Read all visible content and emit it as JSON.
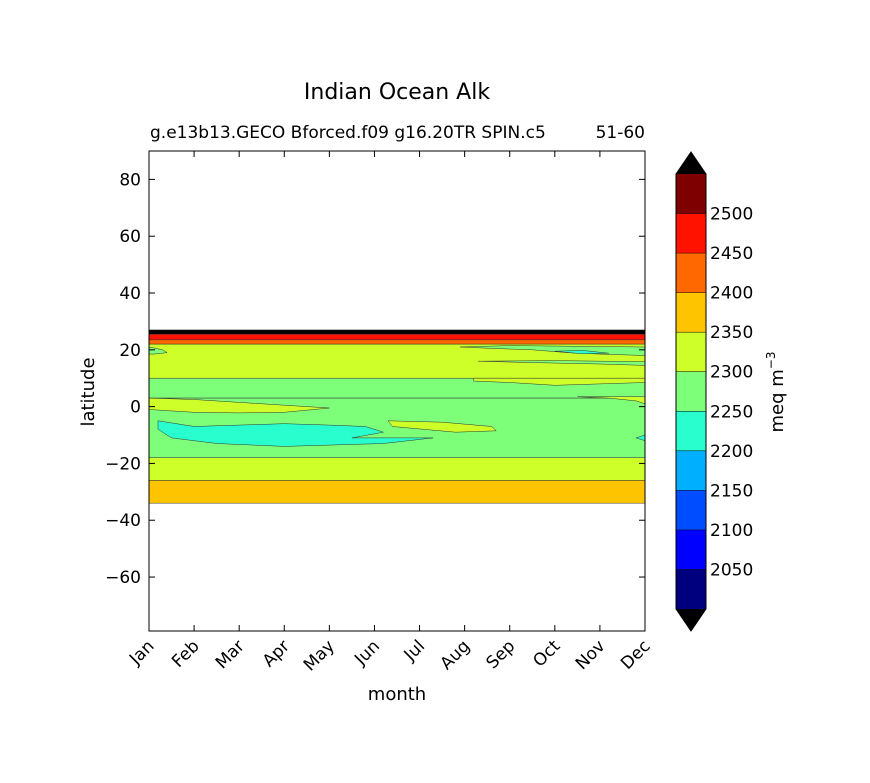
{
  "chart_data": {
    "type": "contour",
    "title": "Indian Ocean Alk",
    "subtitle_left": "g.e13b13.GECO Bforced.f09 g16.20TR SPIN.c5",
    "subtitle_right": "51-60",
    "xlabel": "month",
    "ylabel": "latitude",
    "x_ticks": [
      "Jan",
      "Feb",
      "Mar",
      "Apr",
      "May",
      "Jun",
      "Jul",
      "Aug",
      "Sep",
      "Oct",
      "Nov",
      "Dec"
    ],
    "y_ticks": [
      80,
      60,
      40,
      20,
      0,
      -20,
      -40,
      -60
    ],
    "ylim": [
      -79,
      90
    ],
    "xlim": [
      1,
      12
    ],
    "colorbar": {
      "label": "meq m",
      "label_exp": "−3",
      "levels": [
        2000,
        2050,
        2100,
        2150,
        2200,
        2250,
        2300,
        2350,
        2400,
        2450,
        2500,
        2550
      ],
      "tick_values": [
        2050,
        2100,
        2150,
        2200,
        2250,
        2300,
        2350,
        2400,
        2450,
        2500
      ],
      "colors": [
        "#00007f",
        "#0000ff",
        "#004cff",
        "#00b0ff",
        "#29ffce",
        "#7dff7a",
        "#ceff29",
        "#ffc400",
        "#ff6800",
        "#ff1300",
        "#7f0000"
      ],
      "extend_colors": {
        "low": "#000000",
        "high": "#000000"
      }
    },
    "bands": [
      {
        "lat_top": 27,
        "lat_bottom": 25.5,
        "value": 2550,
        "color": "#000000"
      },
      {
        "lat_top": 25.5,
        "lat_bottom": 23.5,
        "value": 2475,
        "color": "#ff1300"
      },
      {
        "lat_top": 23.5,
        "lat_bottom": 22,
        "value": 2425,
        "color": "#ff6800"
      },
      {
        "lat_top": 22,
        "lat_bottom": 10,
        "value": 2325,
        "color": "#ceff29"
      },
      {
        "lat_top": 10,
        "lat_bottom": 3,
        "value": 2275,
        "color": "#7dff7a"
      },
      {
        "lat_top": 3,
        "lat_bottom": -18,
        "value": 2275,
        "color": "#7dff7a"
      },
      {
        "lat_top": -18,
        "lat_bottom": -26,
        "value": 2325,
        "color": "#ceff29"
      },
      {
        "lat_top": -26,
        "lat_bottom": -34,
        "value": 2375,
        "color": "#ffc400"
      }
    ],
    "regions": [
      {
        "value": 2325,
        "color": "#ceff29",
        "points": [
          [
            1,
            3
          ],
          [
            2,
            2.5
          ],
          [
            3,
            1.5
          ],
          [
            4,
            0.5
          ],
          [
            5,
            -0.5
          ],
          [
            4,
            -2
          ],
          [
            3,
            -2.2
          ],
          [
            2,
            -2
          ],
          [
            1,
            -1
          ]
        ]
      },
      {
        "value": 2225,
        "color": "#29ffce",
        "points": [
          [
            1.2,
            -5
          ],
          [
            2,
            -7
          ],
          [
            3,
            -6.5
          ],
          [
            4,
            -6
          ],
          [
            5,
            -6.5
          ],
          [
            5.8,
            -7
          ],
          [
            6.2,
            -9
          ],
          [
            5.5,
            -11
          ],
          [
            7.3,
            -11
          ],
          [
            6.2,
            -13
          ],
          [
            4,
            -14
          ],
          [
            2.5,
            -13
          ],
          [
            1.5,
            -11
          ],
          [
            1.2,
            -8
          ]
        ]
      },
      {
        "value": 2325,
        "color": "#ceff29",
        "points": [
          [
            8.2,
            9
          ],
          [
            9,
            8.5
          ],
          [
            10,
            7.5
          ],
          [
            11,
            8
          ],
          [
            12,
            8.5
          ],
          [
            12,
            10
          ],
          [
            10,
            10
          ],
          [
            8.2,
            10
          ]
        ]
      },
      {
        "value": 2325,
        "color": "#ceff29",
        "points": [
          [
            10.5,
            3.5
          ],
          [
            11.2,
            3
          ],
          [
            11.8,
            2
          ],
          [
            12,
            1
          ],
          [
            12,
            3.5
          ]
        ]
      },
      {
        "value": 2275,
        "color": "#7dff7a",
        "points": [
          [
            7.9,
            21
          ],
          [
            8.6,
            20.5
          ],
          [
            9.5,
            20
          ],
          [
            10.3,
            19
          ],
          [
            11,
            18.5
          ],
          [
            12,
            18
          ],
          [
            12,
            21
          ],
          [
            9,
            21.5
          ]
        ]
      },
      {
        "value": 2225,
        "color": "#29ffce",
        "points": [
          [
            10,
            19.5
          ],
          [
            10.6,
            18.6
          ],
          [
            11.2,
            18.8
          ],
          [
            10.6,
            19.8
          ]
        ]
      },
      {
        "value": 2275,
        "color": "#7dff7a",
        "points": [
          [
            8.3,
            16
          ],
          [
            9.5,
            15.5
          ],
          [
            11,
            15
          ],
          [
            12,
            14.5
          ],
          [
            12,
            15.8
          ],
          [
            10,
            16.2
          ]
        ]
      },
      {
        "value": 2275,
        "color": "#7dff7a",
        "points": [
          [
            1,
            21
          ],
          [
            1.3,
            20
          ],
          [
            1.4,
            19
          ],
          [
            1.1,
            18.5
          ],
          [
            1,
            18.5
          ]
        ]
      },
      {
        "value": 2225,
        "color": "#29ffce",
        "points": [
          [
            12,
            -10
          ],
          [
            11.8,
            -11
          ],
          [
            12,
            -12
          ]
        ]
      },
      {
        "value": 2325,
        "color": "#ceff29",
        "points": [
          [
            6.3,
            -5
          ],
          [
            7.5,
            -5.5
          ],
          [
            8.6,
            -7
          ],
          [
            8.7,
            -8.5
          ],
          [
            7.8,
            -9
          ],
          [
            6.4,
            -7
          ]
        ]
      }
    ]
  }
}
